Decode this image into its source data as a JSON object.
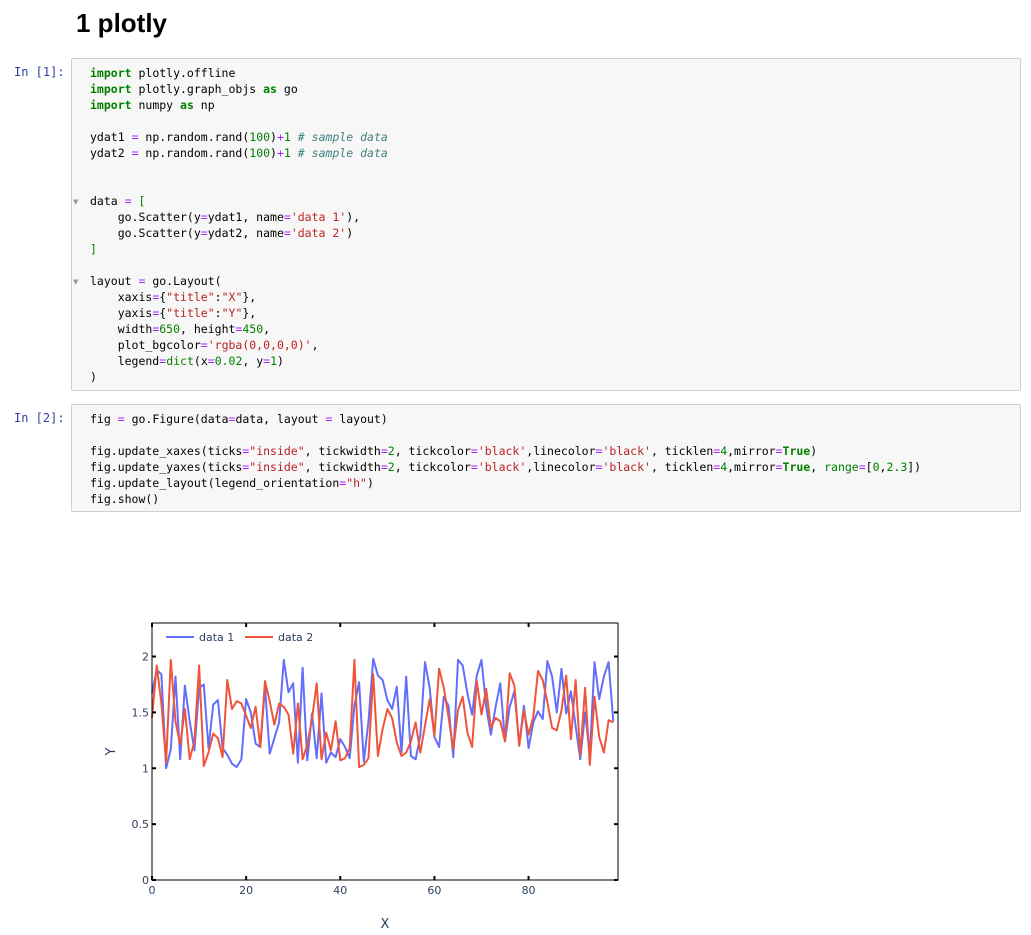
{
  "heading": "1  plotly",
  "cells": [
    {
      "prompt": "In [1]:"
    },
    {
      "prompt": "In [2]:"
    }
  ],
  "chart_data": {
    "type": "line",
    "xlabel": "X",
    "ylabel": "Y",
    "xlim": [
      0,
      99
    ],
    "ylim": [
      0,
      2.3
    ],
    "xticks": [
      0,
      20,
      40,
      60,
      80
    ],
    "yticks": [
      0,
      0.5,
      1,
      1.5,
      2
    ],
    "xtick_labels": [
      "0",
      "20",
      "40",
      "60",
      "80"
    ],
    "ytick_labels": [
      "0",
      "0.5",
      "1",
      "1.5",
      "2"
    ],
    "legend": {
      "orientation": "h",
      "placement": "top-left"
    },
    "series": [
      {
        "name": "data 1",
        "color": "#636efa",
        "values": [
          1.67,
          1.88,
          1.84,
          1.0,
          1.17,
          1.82,
          1.08,
          1.74,
          1.42,
          1.16,
          1.72,
          1.75,
          1.18,
          1.57,
          1.61,
          1.18,
          1.12,
          1.04,
          1.01,
          1.08,
          1.62,
          1.5,
          1.22,
          1.19,
          1.73,
          1.13,
          1.27,
          1.41,
          1.97,
          1.68,
          1.76,
          1.05,
          1.9,
          1.07,
          1.49,
          1.09,
          1.67,
          1.05,
          1.14,
          1.1,
          1.26,
          1.19,
          1.09,
          1.56,
          1.77,
          1.06,
          1.42,
          1.98,
          1.83,
          1.79,
          1.61,
          1.53,
          1.73,
          1.14,
          1.82,
          1.11,
          1.08,
          1.29,
          1.95,
          1.72,
          1.28,
          1.19,
          1.64,
          1.56,
          1.1,
          1.97,
          1.92,
          1.67,
          1.48,
          1.83,
          1.97,
          1.55,
          1.3,
          1.55,
          1.76,
          1.24,
          1.55,
          1.69,
          1.21,
          1.56,
          1.18,
          1.41,
          1.51,
          1.44,
          1.96,
          1.82,
          1.5,
          1.89,
          1.49,
          1.69,
          1.38,
          1.08,
          1.5,
          1.12,
          1.95,
          1.62,
          1.82,
          1.95,
          1.42
        ]
      },
      {
        "name": "data 2",
        "color": "#ef553b",
        "values": [
          1.45,
          1.92,
          1.58,
          1.05,
          1.97,
          1.42,
          1.21,
          1.53,
          1.08,
          1.24,
          1.92,
          1.02,
          1.14,
          1.31,
          1.27,
          1.1,
          1.79,
          1.53,
          1.6,
          1.58,
          1.47,
          1.36,
          1.55,
          1.19,
          1.78,
          1.6,
          1.39,
          1.58,
          1.55,
          1.48,
          1.13,
          1.58,
          1.08,
          1.21,
          1.44,
          1.76,
          1.08,
          1.32,
          1.16,
          1.42,
          1.07,
          1.09,
          1.18,
          1.97,
          1.01,
          1.03,
          1.09,
          1.84,
          1.11,
          1.35,
          1.53,
          1.45,
          1.23,
          1.11,
          1.14,
          1.24,
          1.41,
          1.14,
          1.38,
          1.62,
          1.29,
          1.89,
          1.72,
          1.46,
          1.17,
          1.52,
          1.64,
          1.32,
          1.19,
          1.78,
          1.48,
          1.71,
          1.36,
          1.45,
          1.42,
          1.24,
          1.85,
          1.74,
          1.2,
          1.52,
          1.3,
          1.46,
          1.87,
          1.79,
          1.59,
          1.36,
          1.34,
          1.52,
          1.83,
          1.26,
          1.79,
          1.12,
          1.72,
          1.03,
          1.64,
          1.28,
          1.14,
          1.43,
          1.41
        ]
      }
    ]
  }
}
